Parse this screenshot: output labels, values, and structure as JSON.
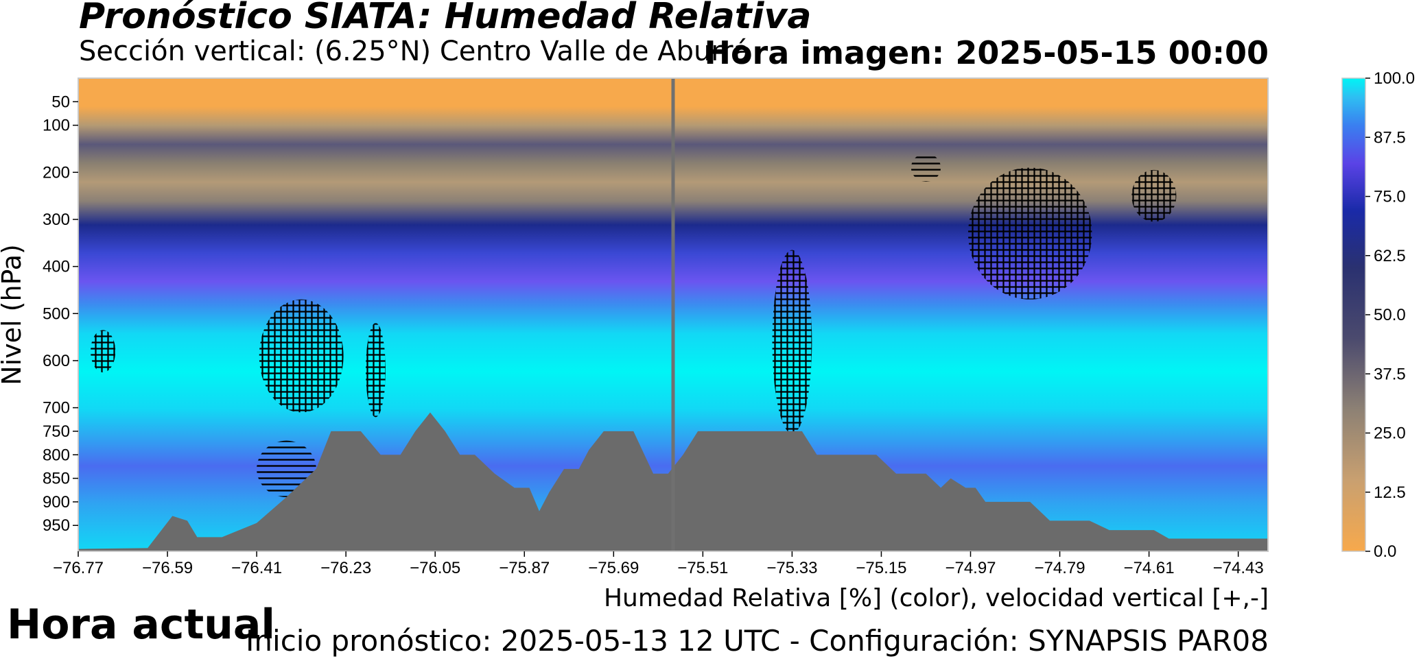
{
  "header": {
    "title": "Pronóstico SIATA: Humedad Relativa",
    "subtitle": "Sección vertical: (6.25°N) Centro Valle de Aburrá",
    "image_time": "Hora imagen: 2025-05-15 00:00"
  },
  "footer": {
    "current_time_label": "Hora actual",
    "init_text": "Inicio pronóstico: 2025-05-13 12 UTC - Configuración: SYNAPSIS PAR08"
  },
  "chart_data": {
    "type": "heatmap",
    "title": "Pronóstico SIATA: Humedad Relativa",
    "xlabel": "Humedad Relativa [%] (color), velocidad vertical [+,-]",
    "ylabel": "Nivel (hPa)",
    "x_ticks": [
      "−76.77",
      "−76.59",
      "−76.41",
      "−76.23",
      "−76.05",
      "−75.87",
      "−75.69",
      "−75.51",
      "−75.33",
      "−75.15",
      "−74.97",
      "−74.79",
      "−74.61",
      "−74.43"
    ],
    "x_values": [
      -76.77,
      -76.59,
      -76.41,
      -76.23,
      -76.05,
      -75.87,
      -75.69,
      -75.51,
      -75.33,
      -75.15,
      -74.97,
      -74.79,
      -74.61,
      -74.43
    ],
    "xlim": [
      -76.77,
      -74.37
    ],
    "y_ticks": [
      "50",
      "100",
      "200",
      "300",
      "400",
      "500",
      "600",
      "700",
      "750",
      "800",
      "850",
      "900",
      "950"
    ],
    "y_values": [
      50,
      100,
      200,
      300,
      400,
      500,
      600,
      700,
      750,
      800,
      850,
      900,
      950
    ],
    "ylim": [
      1005,
      0
    ],
    "colorbar": {
      "ticks": [
        "100.0",
        "87.5",
        "75.0",
        "62.5",
        "50.0",
        "37.5",
        "25.0",
        "12.5",
        "0.0"
      ],
      "values": [
        100,
        87.5,
        75,
        62.5,
        50,
        37.5,
        25,
        12.5,
        0
      ],
      "range": [
        0,
        100
      ]
    },
    "colors": {
      "dry": "#f7a94c",
      "tan": "#9a8d74",
      "navy": "#1c2a8c",
      "purple": "#5a43e6",
      "blue": "#2f9bf0",
      "cyan": "#00f5f5",
      "terrain": "#6b6b6b",
      "current_line": "#707070"
    },
    "current_time_longitude": -75.57,
    "terrain_profile": [
      [
        -76.77,
        1000
      ],
      [
        -76.63,
        998
      ],
      [
        -76.58,
        930
      ],
      [
        -76.55,
        940
      ],
      [
        -76.53,
        975
      ],
      [
        -76.48,
        975
      ],
      [
        -76.41,
        945
      ],
      [
        -76.35,
        890
      ],
      [
        -76.29,
        830
      ],
      [
        -76.26,
        750
      ],
      [
        -76.2,
        750
      ],
      [
        -76.16,
        800
      ],
      [
        -76.12,
        800
      ],
      [
        -76.09,
        750
      ],
      [
        -76.06,
        710
      ],
      [
        -76.03,
        750
      ],
      [
        -76.0,
        800
      ],
      [
        -75.97,
        800
      ],
      [
        -75.93,
        840
      ],
      [
        -75.89,
        870
      ],
      [
        -75.86,
        870
      ],
      [
        -75.84,
        920
      ],
      [
        -75.82,
        880
      ],
      [
        -75.79,
        830
      ],
      [
        -75.76,
        830
      ],
      [
        -75.74,
        790
      ],
      [
        -75.71,
        750
      ],
      [
        -75.65,
        750
      ],
      [
        -75.61,
        840
      ],
      [
        -75.58,
        840
      ],
      [
        -75.55,
        800
      ],
      [
        -75.52,
        750
      ],
      [
        -75.31,
        750
      ],
      [
        -75.28,
        800
      ],
      [
        -75.16,
        800
      ],
      [
        -75.12,
        840
      ],
      [
        -75.06,
        840
      ],
      [
        -75.03,
        870
      ],
      [
        -75.01,
        850
      ],
      [
        -74.98,
        870
      ],
      [
        -74.96,
        870
      ],
      [
        -74.94,
        900
      ],
      [
        -74.85,
        900
      ],
      [
        -74.81,
        940
      ],
      [
        -74.73,
        940
      ],
      [
        -74.69,
        960
      ],
      [
        -74.6,
        960
      ],
      [
        -74.57,
        978
      ],
      [
        -74.37,
        978
      ]
    ],
    "hatched_regions": [
      {
        "sign": "+",
        "center": [
          -76.72,
          580
        ],
        "size": [
          0.05,
          90
        ]
      },
      {
        "sign": "+",
        "center": [
          -76.32,
          590
        ],
        "size": [
          0.17,
          240
        ]
      },
      {
        "sign": "+",
        "center": [
          -76.17,
          620
        ],
        "size": [
          0.04,
          200
        ]
      },
      {
        "sign": "+",
        "center": [
          -75.33,
          560
        ],
        "size": [
          0.08,
          390
        ]
      },
      {
        "sign": "+",
        "center": [
          -74.85,
          330
        ],
        "size": [
          0.25,
          280
        ]
      },
      {
        "sign": "+",
        "center": [
          -74.6,
          250
        ],
        "size": [
          0.09,
          110
        ]
      },
      {
        "sign": "-",
        "center": [
          -76.35,
          830
        ],
        "size": [
          0.12,
          120
        ]
      },
      {
        "sign": "-",
        "center": [
          -75.06,
          190
        ],
        "size": [
          0.06,
          60
        ]
      }
    ]
  }
}
